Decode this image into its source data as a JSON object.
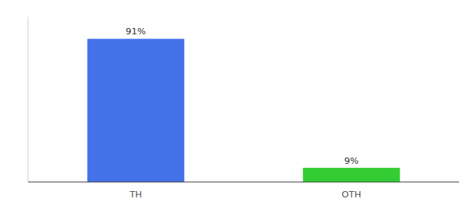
{
  "chart_data": {
    "type": "bar",
    "categories": [
      "TH",
      "OTH"
    ],
    "values": [
      91,
      9
    ],
    "value_labels": [
      "91%",
      "9%"
    ],
    "colors": [
      "#4472e8",
      "#33cc33"
    ],
    "ylim": [
      0,
      105
    ],
    "data_labels": true,
    "tick_labels": "x"
  }
}
